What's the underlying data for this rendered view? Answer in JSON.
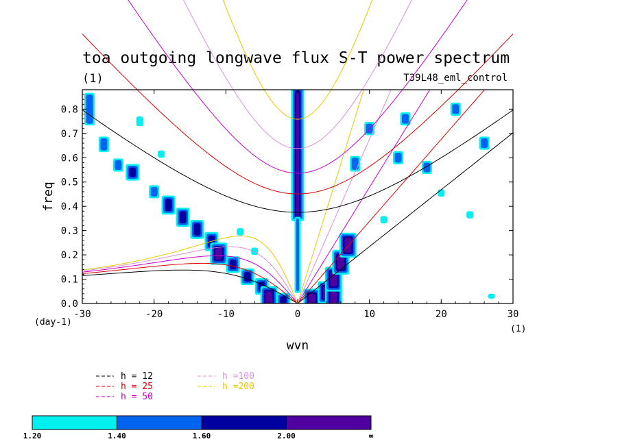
{
  "chart_data": {
    "type": "heatmap",
    "title": "toa outgoing longwave flux S-T power spectrum",
    "subtitle_left": "(1)",
    "subtitle_right": "T39L48_eml_control",
    "xlabel": "wvn",
    "ylabel": "freq",
    "x_unit_label": "(1)",
    "y_unit_label": "(day-1)",
    "xlim": [
      -30,
      30
    ],
    "ylim": [
      0,
      0.88
    ],
    "x_ticks": [
      -30,
      -20,
      -10,
      0,
      10,
      20,
      30
    ],
    "x_tick_labels": [
      "-30",
      "-20",
      "-10",
      "0",
      "10",
      "20",
      "30"
    ],
    "y_ticks": [
      0,
      0.1,
      0.2,
      0.3,
      0.4,
      0.5,
      0.6,
      0.7,
      0.8
    ],
    "y_tick_labels": [
      "0.0",
      "0.1",
      "0.2",
      "0.3",
      "0.4",
      "0.5",
      "0.6",
      "0.7",
      "0.8"
    ],
    "dispersion_curves": [
      {
        "name": "h = 12",
        "h": 12,
        "color": "#000000"
      },
      {
        "name": "h = 25",
        "h": 25,
        "color": "#e00000"
      },
      {
        "name": "h = 50",
        "h": 50,
        "color": "#c800c8"
      },
      {
        "name": "h =100",
        "h": 100,
        "color": "#d890d8"
      },
      {
        "name": "h =200",
        "h": 200,
        "color": "#e8c800"
      }
    ],
    "colorbar": {
      "levels": [
        "1.20",
        "1.40",
        "1.60",
        "2.00",
        "∞"
      ],
      "colors": [
        "#00f0f0",
        "#0064f0",
        "#0000a0",
        "#5000a0"
      ]
    },
    "blobs": [
      {
        "x": 0,
        "y0": 0.36,
        "y1": 0.87,
        "level": 3
      },
      {
        "x": 0,
        "y0": 0.05,
        "y1": 0.35,
        "level": 1
      },
      {
        "x": -29,
        "y0": 0.74,
        "y1": 0.86,
        "level": 1
      },
      {
        "x": -27,
        "y0": 0.63,
        "y1": 0.68,
        "level": 1
      },
      {
        "x": -25,
        "y0": 0.55,
        "y1": 0.59,
        "level": 1
      },
      {
        "x": -23,
        "y0": 0.52,
        "y1": 0.56,
        "level": 2
      },
      {
        "x": -20,
        "y0": 0.44,
        "y1": 0.48,
        "level": 1
      },
      {
        "x": -18,
        "y0": 0.38,
        "y1": 0.43,
        "level": 2
      },
      {
        "x": -16,
        "y0": 0.33,
        "y1": 0.38,
        "level": 2
      },
      {
        "x": -14,
        "y0": 0.28,
        "y1": 0.33,
        "level": 2
      },
      {
        "x": -12,
        "y0": 0.23,
        "y1": 0.28,
        "level": 2
      },
      {
        "x": -11,
        "y0": 0.18,
        "y1": 0.23,
        "level": 3
      },
      {
        "x": -9,
        "y0": 0.14,
        "y1": 0.18,
        "level": 2
      },
      {
        "x": -7,
        "y0": 0.09,
        "y1": 0.13,
        "level": 2
      },
      {
        "x": -5,
        "y0": 0.05,
        "y1": 0.09,
        "level": 2
      },
      {
        "x": -4,
        "y0": 0.0,
        "y1": 0.05,
        "level": 3
      },
      {
        "x": -2,
        "y0": 0.0,
        "y1": 0.03,
        "level": 2
      },
      {
        "x": 2,
        "y0": 0.0,
        "y1": 0.04,
        "level": 3
      },
      {
        "x": 4,
        "y0": 0.02,
        "y1": 0.07,
        "level": 3
      },
      {
        "x": 5,
        "y0": 0.0,
        "y1": 0.05,
        "level": 3
      },
      {
        "x": 5,
        "y0": 0.07,
        "y1": 0.13,
        "level": 3
      },
      {
        "x": 6,
        "y0": 0.14,
        "y1": 0.2,
        "level": 3
      },
      {
        "x": 7,
        "y0": 0.21,
        "y1": 0.27,
        "level": 3
      },
      {
        "x": 8,
        "y0": 0.55,
        "y1": 0.6,
        "level": 1
      },
      {
        "x": 10,
        "y0": 0.7,
        "y1": 0.74,
        "level": 1
      },
      {
        "x": 14,
        "y0": 0.58,
        "y1": 0.62,
        "level": 1
      },
      {
        "x": 15,
        "y0": 0.74,
        "y1": 0.78,
        "level": 1
      },
      {
        "x": 18,
        "y0": 0.54,
        "y1": 0.58,
        "level": 1
      },
      {
        "x": 22,
        "y0": 0.78,
        "y1": 0.82,
        "level": 1
      },
      {
        "x": 26,
        "y0": 0.64,
        "y1": 0.68,
        "level": 1
      },
      {
        "x": -22,
        "y0": 0.73,
        "y1": 0.77,
        "level": 0
      },
      {
        "x": -19,
        "y0": 0.6,
        "y1": 0.63,
        "level": 0
      },
      {
        "x": -8,
        "y0": 0.28,
        "y1": 0.31,
        "level": 0
      },
      {
        "x": -6,
        "y0": 0.2,
        "y1": 0.23,
        "level": 0
      },
      {
        "x": 12,
        "y0": 0.33,
        "y1": 0.36,
        "level": 0
      },
      {
        "x": 20,
        "y0": 0.44,
        "y1": 0.47,
        "level": 0
      },
      {
        "x": 24,
        "y0": 0.35,
        "y1": 0.38,
        "level": 0
      },
      {
        "x": 27,
        "y0": 0.02,
        "y1": 0.04,
        "level": 0
      }
    ]
  }
}
